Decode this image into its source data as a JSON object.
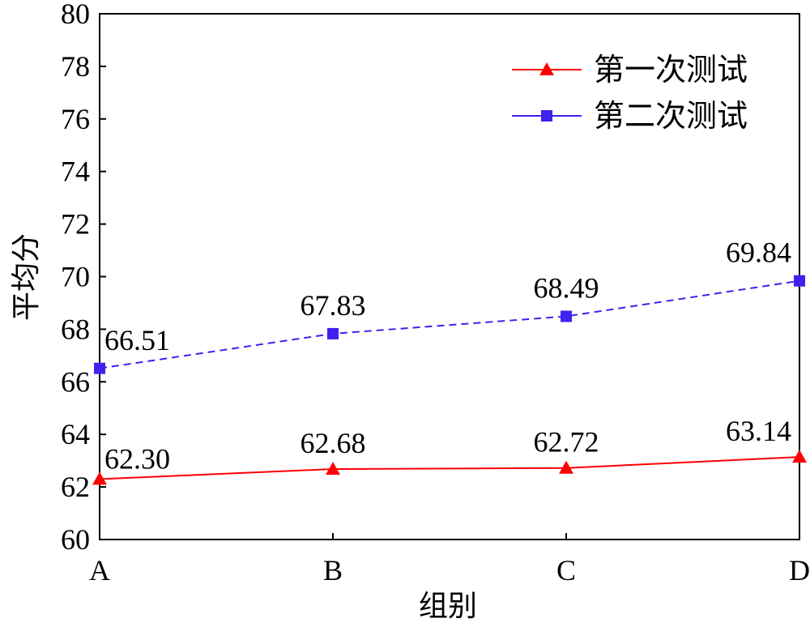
{
  "chart_data": {
    "type": "line",
    "xlabel": "组别",
    "ylabel": "平均分",
    "categories": [
      "A",
      "B",
      "C",
      "D"
    ],
    "ylim": [
      60,
      80
    ],
    "yticks": [
      60,
      62,
      64,
      66,
      68,
      70,
      72,
      74,
      76,
      78,
      80
    ],
    "grid": false,
    "legend": "top-right",
    "series": [
      {
        "name": "第一次测试",
        "values": [
          62.3,
          62.68,
          62.72,
          63.14
        ],
        "labels": [
          "62.30",
          "62.68",
          "62.72",
          "63.14"
        ],
        "color": "#ff0000",
        "marker": "triangle",
        "line_style": "solid"
      },
      {
        "name": "第二次测试",
        "values": [
          66.51,
          67.83,
          68.49,
          69.84
        ],
        "labels": [
          "66.51",
          "67.83",
          "68.49",
          "69.84"
        ],
        "color": "#3f22ee",
        "marker": "square",
        "line_style": "dashed"
      }
    ]
  }
}
